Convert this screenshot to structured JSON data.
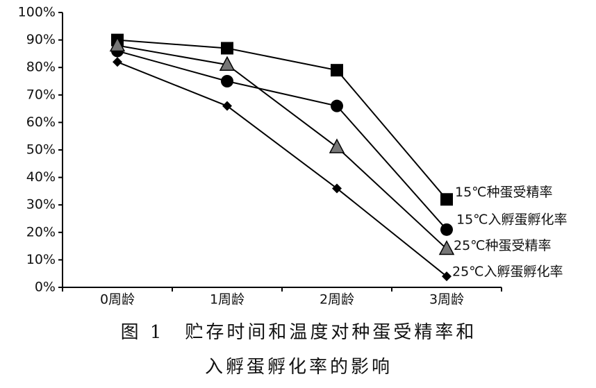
{
  "chart_data": {
    "type": "line",
    "categories": [
      "0周龄",
      "1周龄",
      "2周龄",
      "3周龄"
    ],
    "series": [
      {
        "name": "15℃种蛋受精率",
        "color": "#000000",
        "marker": "square",
        "values": [
          90,
          87,
          79,
          32
        ]
      },
      {
        "name": "15℃入孵蛋孵化率",
        "color": "#000000",
        "marker": "circle",
        "values": [
          86,
          75,
          66,
          21
        ]
      },
      {
        "name": "25℃种蛋受精率",
        "color": "#777777",
        "marker": "triangle",
        "values": [
          88,
          81,
          51,
          14
        ]
      },
      {
        "name": "25℃入孵蛋孵化率",
        "color": "#000000",
        "marker": "diamond",
        "values": [
          82,
          66,
          36,
          4
        ]
      }
    ],
    "ylim": [
      0,
      100
    ],
    "yticks": [
      {
        "value": 0,
        "label": "0%"
      },
      {
        "value": 10,
        "label": "10%"
      },
      {
        "value": 20,
        "label": "20%"
      },
      {
        "value": 30,
        "label": "30%"
      },
      {
        "value": 40,
        "label": "40%"
      },
      {
        "value": 50,
        "label": "50%"
      },
      {
        "value": 60,
        "label": "60%"
      },
      {
        "value": 70,
        "label": "70%"
      },
      {
        "value": 80,
        "label": "80%"
      },
      {
        "value": 90,
        "label": "90%"
      },
      {
        "value": 100,
        "label": "100%"
      }
    ],
    "grid": false,
    "caption": [
      "图 1　贮存时间和温度对种蛋受精率和",
      "入孵蛋孵化率的影响"
    ]
  }
}
